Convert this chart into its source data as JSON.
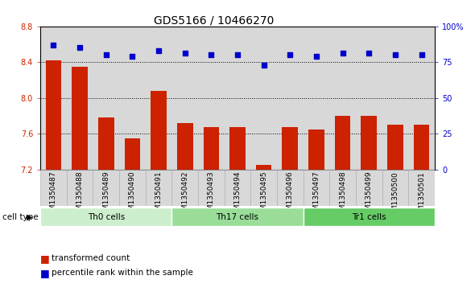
{
  "title": "GDS5166 / 10466270",
  "samples": [
    "GSM1350487",
    "GSM1350488",
    "GSM1350489",
    "GSM1350490",
    "GSM1350491",
    "GSM1350492",
    "GSM1350493",
    "GSM1350494",
    "GSM1350495",
    "GSM1350496",
    "GSM1350497",
    "GSM1350498",
    "GSM1350499",
    "GSM1350500",
    "GSM1350501"
  ],
  "transformed_count": [
    8.42,
    8.35,
    7.78,
    7.55,
    8.08,
    7.72,
    7.67,
    7.67,
    7.25,
    7.67,
    7.65,
    7.8,
    7.8,
    7.7,
    7.7
  ],
  "percentile_rank": [
    87,
    85,
    80,
    79,
    83,
    81,
    80,
    80,
    73,
    80,
    79,
    81,
    81,
    80,
    80
  ],
  "cell_groups": [
    {
      "label": "Th0 cells",
      "start": 0,
      "end": 5,
      "color": "#cceecc"
    },
    {
      "label": "Th17 cells",
      "start": 5,
      "end": 10,
      "color": "#99dd99"
    },
    {
      "label": "Tr1 cells",
      "start": 10,
      "end": 15,
      "color": "#66cc66"
    }
  ],
  "ylim_left": [
    7.2,
    8.8
  ],
  "ylim_right": [
    0,
    100
  ],
  "yticks_left": [
    7.2,
    7.6,
    8.0,
    8.4,
    8.8
  ],
  "yticks_right": [
    0,
    25,
    50,
    75,
    100
  ],
  "bar_color": "#cc2200",
  "dot_color": "#0000cc",
  "title_fontsize": 10,
  "tick_fontsize": 7,
  "cell_type_label": "cell type"
}
